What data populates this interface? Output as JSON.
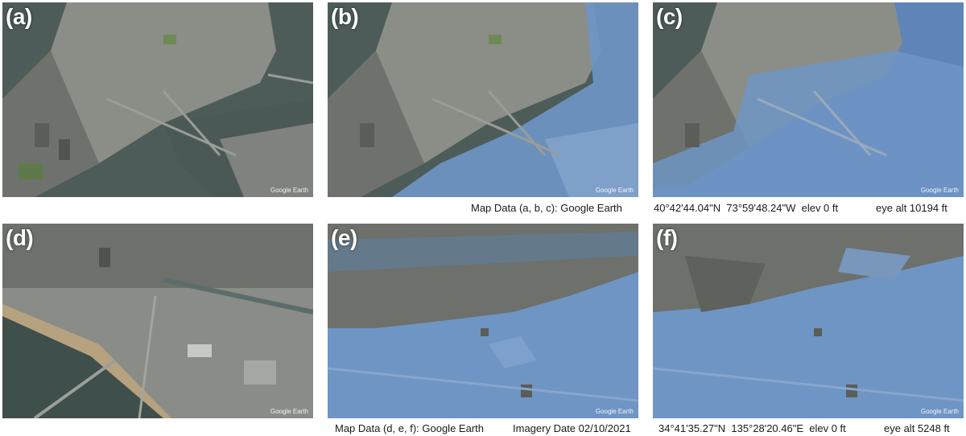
{
  "panels": [
    {
      "label": "(a)",
      "watermark": "Google Earth",
      "flooded": false
    },
    {
      "label": "(b)",
      "watermark": "Google Earth",
      "flooded": true
    },
    {
      "label": "(c)",
      "watermark": "Google Earth",
      "flooded": true
    },
    {
      "label": "(d)",
      "watermark": "Google Earth",
      "flooded": false
    },
    {
      "label": "(e)",
      "watermark": "Google Earth",
      "flooded": true
    },
    {
      "label": "(f)",
      "watermark": "Google Earth",
      "flooded": true
    }
  ],
  "captions": {
    "top": {
      "map_data": "Map Data (a, b, c): Google Earth",
      "coords": "40°42'44.04\"N  73°59'48.24\"W  elev 0 ft",
      "eye_alt": "eye alt 10194 ft"
    },
    "bottom": {
      "map_data": "Map Data (d, e, f): Google Earth",
      "imagery_date": "Imagery Date 02/10/2021",
      "coords": "34°41'35.27\"N  135°28'20.46\"E  elev 0 ft",
      "eye_alt": "eye alt 5248 ft"
    }
  },
  "colors": {
    "water_dark": "#4a5a58",
    "flood_blue": "#6f95c4",
    "city_gray": "#8a8c88",
    "city_dark": "#5b5e5a",
    "park_green": "#5f7a4a"
  }
}
